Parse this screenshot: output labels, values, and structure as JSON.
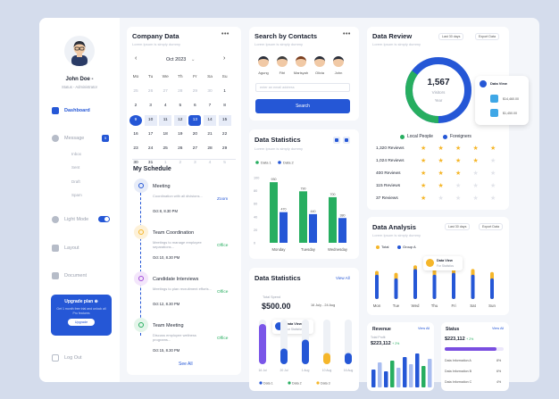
{
  "sidebar": {
    "user_name": "John Doe -",
    "user_role": "Status - Administrator",
    "nav": [
      {
        "label": "Dashboard"
      },
      {
        "label": "Message",
        "badge": "5"
      },
      {
        "label": "Light Mode"
      },
      {
        "label": "Layout"
      },
      {
        "label": "Document"
      }
    ],
    "message_sub": [
      "Inbox",
      "Sent",
      "Draft",
      "Spam"
    ],
    "upgrade": {
      "title": "Upgrade plan ⊕",
      "text": "Get 1 month free trial and unlock all Pro features",
      "button": "Upgrade"
    },
    "logout": "Log Out"
  },
  "company": {
    "title": "Company Data",
    "subtitle": "Lorem Ipsum is simply dummy",
    "month": "Oct 2023",
    "weekdays": [
      "Mo",
      "Tu",
      "We",
      "Th",
      "Fr",
      "Sa",
      "Su"
    ],
    "weeks": [
      [
        "25",
        "26",
        "27",
        "28",
        "29",
        "30",
        "1"
      ],
      [
        "2",
        "3",
        "4",
        "5",
        "6",
        "7",
        "8"
      ],
      [
        "9",
        "10",
        "11",
        "12",
        "13",
        "14",
        "15"
      ],
      [
        "16",
        "17",
        "18",
        "19",
        "20",
        "21",
        "22"
      ],
      [
        "23",
        "24",
        "25",
        "26",
        "27",
        "28",
        "29"
      ],
      [
        "30",
        "31",
        "1",
        "2",
        "3",
        "4",
        "5"
      ]
    ],
    "selected": "9",
    "highlighted": "13"
  },
  "schedule": {
    "title": "My Schedule",
    "items": [
      {
        "title": "Meeting",
        "desc": "Coordination with all divisions...",
        "time": "Oct 8, 8.30 PM",
        "action": "Zoom",
        "action_color": "#2557d6"
      },
      {
        "title": "Team Coordination",
        "desc": "Meetings to manage employee separations...",
        "time": "Oct 10, 8.30 PM",
        "action": "Office",
        "action_color": "#27ae60"
      },
      {
        "title": "Candidate Interviews",
        "desc": "Meetings to plan recruitment efforts...",
        "time": "Oct 12, 8.30 PM",
        "action": "Office",
        "action_color": "#27ae60"
      },
      {
        "title": "Team Meeting",
        "desc": "Discuss employee wellness programs...",
        "time": "Oct 15, 8.30 PM",
        "action": "Office",
        "action_color": "#27ae60"
      }
    ],
    "see_all": "See All"
  },
  "contacts": {
    "title": "Search by Contacts",
    "subtitle": "Lorem Ipsum is simply dummy",
    "people": [
      "Agung",
      "Fitri",
      "Marisyah",
      "Olivia",
      "John"
    ],
    "email_placeholder": "enter an email address",
    "search_button": "Search"
  },
  "stats1": {
    "title": "Data Statistics",
    "subtitle": "Lorem Ipsum is simply dummy",
    "legend": [
      "Data 1",
      "Data 2"
    ],
    "colors": {
      "data1": "#27ae60",
      "data2": "#2557d6"
    }
  },
  "stats2": {
    "title": "Data Statistics",
    "view_all": "View All",
    "total_label": "Total Spend",
    "total": "$500.00",
    "range": "16 July - 24 Aug",
    "tooltip_title": "Data View",
    "tooltip_sub": "For Statistics",
    "legend": [
      "Data 1",
      "Data 2",
      "Data 3"
    ]
  },
  "review": {
    "title": "Data Review",
    "subtitle": "Lorem Ipsum is simply dummy",
    "range": "Last 30 days",
    "export": "Export Data",
    "total": "1,567",
    "total_label": "Visitors",
    "period": "Year",
    "good_label": "Local People",
    "bad_label": "Foreigners",
    "good_fraction": 0.35,
    "rows": [
      {
        "label": "1,320 Reviews",
        "stars": 5
      },
      {
        "label": "1,024 Reviews",
        "stars": 4
      },
      {
        "label": "400 Reviews",
        "stars": 3
      },
      {
        "label": "115 Reviews",
        "stars": 2
      },
      {
        "label": "37 Reviews",
        "stars": 1
      }
    ],
    "popup": {
      "title": "Data View",
      "v1": "$14,460.00",
      "v2": "$1,450.00"
    }
  },
  "analysis": {
    "title": "Data Analysis",
    "subtitle": "Lorem Ipsum is simply dummy",
    "range": "Last 30 days",
    "export": "Export Data",
    "legend": [
      "Total",
      "Group A"
    ],
    "tooltip_title": "Data View",
    "tooltip_sub": "For Statistics"
  },
  "revenue": {
    "title": "Revenue",
    "view_all": "View All",
    "total_label": "Total Profit",
    "total": "$223,112",
    "delta": "+ 2%"
  },
  "status": {
    "title": "Status",
    "view_all": "View All",
    "value": "$223,112",
    "delta": "+ 2%",
    "rows": [
      {
        "label": "Data Information A",
        "value": "8%"
      },
      {
        "label": "Data Information B",
        "value": "6%"
      },
      {
        "label": "Data Information C",
        "value": "4%"
      }
    ]
  },
  "chart_data": [
    {
      "type": "bar",
      "categories": [
        "Monday",
        "Tuesday",
        "Wednesday"
      ],
      "series": [
        {
          "name": "Data 1",
          "values": [
            930,
            790,
            700
          ]
        },
        {
          "name": "Data 2",
          "values": [
            470,
            440,
            380
          ]
        }
      ],
      "value_labels": [
        "930",
        "470",
        "790",
        "440",
        "700",
        "380"
      ],
      "yticks": [
        "100",
        "80",
        "60",
        "40",
        "20",
        "0"
      ]
    },
    {
      "type": "bar",
      "categories": [
        "16 Jul",
        "20 Jul",
        "1 Aug",
        "10 Aug",
        "16 Aug"
      ],
      "series": [
        {
          "name": "Data 1",
          "values": [
            90,
            35,
            55,
            15,
            25
          ]
        },
        {
          "name": "Data 2",
          "values": [
            25,
            18,
            30,
            12,
            15
          ]
        },
        {
          "name": "Data 3",
          "values": [
            20,
            10,
            20,
            25,
            18
          ]
        }
      ]
    },
    {
      "type": "bar",
      "categories": [
        "Mon",
        "Tue",
        "Wed",
        "Thu",
        "Fri",
        "Sat",
        "Sun"
      ],
      "series": [
        {
          "name": "Total",
          "values": [
            75,
            70,
            90,
            80,
            85,
            80,
            72
          ]
        },
        {
          "name": "Group A",
          "values": [
            65,
            55,
            80,
            65,
            70,
            65,
            55
          ]
        }
      ]
    },
    {
      "type": "bar",
      "categories": [
        "a",
        "b",
        "c",
        "d",
        "e",
        "f",
        "g",
        "h",
        "i",
        "j"
      ],
      "series": [
        {
          "name": "Revenue",
          "values": [
            20,
            28,
            18,
            30,
            22,
            34,
            26,
            38,
            24,
            32
          ]
        }
      ]
    }
  ]
}
